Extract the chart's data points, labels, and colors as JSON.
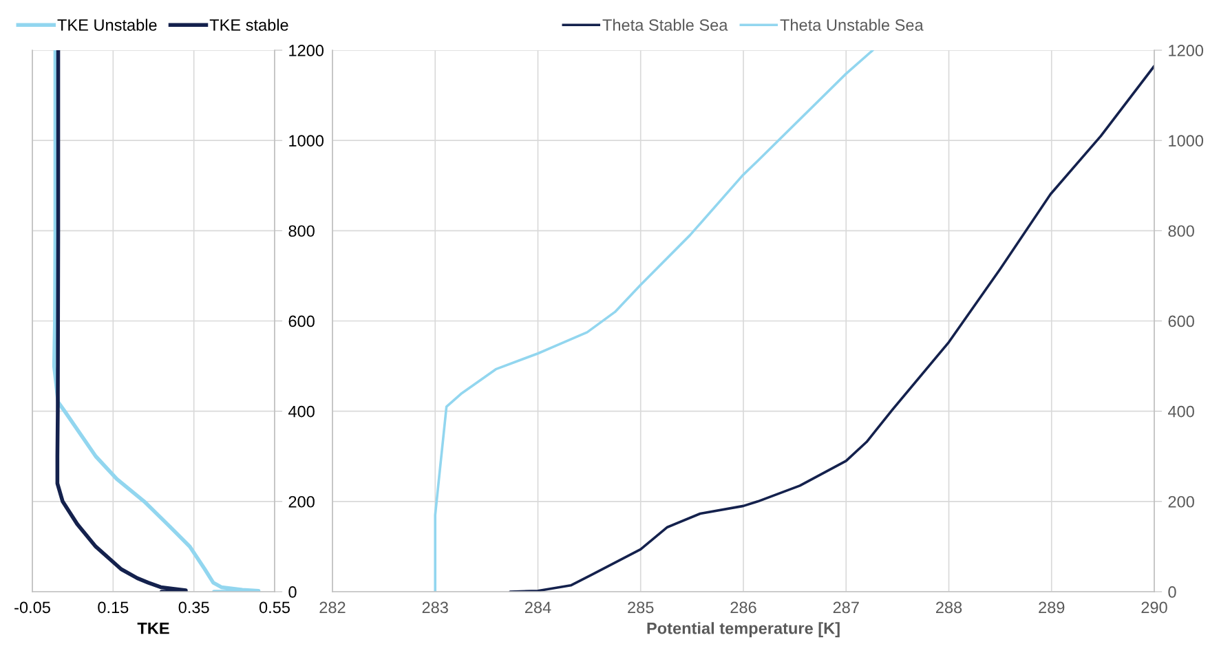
{
  "chart_data": [
    {
      "type": "line",
      "xlabel": "TKE",
      "xlim": [
        -0.05,
        0.55
      ],
      "xticks": [
        -0.05,
        0.15,
        0.35,
        0.55
      ],
      "ylim": [
        0,
        1200
      ],
      "yticks": [
        0,
        200,
        400,
        600,
        800,
        1000,
        1200
      ],
      "grid": true,
      "legend": "top",
      "series": [
        {
          "name": "TKE Unstable",
          "color": "#92d6ef",
          "x": [
            0.007,
            0.007,
            0.006,
            0.004,
            0.014,
            0.03,
            0.107,
            0.159,
            0.227,
            0.284,
            0.34,
            0.377,
            0.398,
            0.418,
            0.47,
            0.51,
            0.51,
            0.4
          ],
          "values": [
            1200,
            800,
            600,
            500,
            420,
            400,
            300,
            250,
            200,
            150,
            100,
            50,
            20,
            10,
            4,
            2,
            0,
            0
          ]
        },
        {
          "name": "TKE stable",
          "color": "#14214d",
          "x": [
            0.014,
            0.014,
            0.013,
            0.012,
            0.012,
            0.025,
            0.061,
            0.107,
            0.17,
            0.21,
            0.237,
            0.268,
            0.33,
            0.33,
            0.27
          ],
          "values": [
            1200,
            800,
            400,
            300,
            240,
            200,
            150,
            100,
            50,
            30,
            20,
            10,
            3,
            0,
            0
          ]
        }
      ]
    },
    {
      "type": "line",
      "xlabel": "Potential temperature [K]",
      "xlim": [
        282,
        290
      ],
      "xticks": [
        282,
        283,
        284,
        285,
        286,
        287,
        288,
        289,
        290
      ],
      "ylim": [
        0,
        1200
      ],
      "yticks": [
        0,
        200,
        400,
        600,
        800,
        1000,
        1200
      ],
      "grid": true,
      "legend": "top",
      "series": [
        {
          "name": "Theta Stable Sea",
          "color": "#14214d",
          "x": [
            283.73,
            284.0,
            284.32,
            284.52,
            285.0,
            285.26,
            285.58,
            286.0,
            286.14,
            286.55,
            287.0,
            287.2,
            287.45,
            288.0,
            288.5,
            288.99,
            289.48,
            290.0
          ],
          "values": [
            0,
            2,
            14,
            37,
            94,
            143,
            173,
            190,
            200,
            235,
            290,
            332,
            403,
            553,
            715,
            881,
            1010,
            1165
          ]
        },
        {
          "name": "Theta Unstable Sea",
          "color": "#92d6ef",
          "x": [
            283.0,
            283.0,
            283.0,
            283.11,
            283.26,
            283.59,
            284.0,
            284.48,
            284.75,
            285.0,
            285.48,
            285.99,
            286.14,
            287.0,
            287.26
          ],
          "values": [
            0,
            150,
            170,
            410,
            440,
            493,
            528,
            575,
            620,
            680,
            790,
            922,
            955,
            1148,
            1200
          ]
        }
      ]
    }
  ]
}
